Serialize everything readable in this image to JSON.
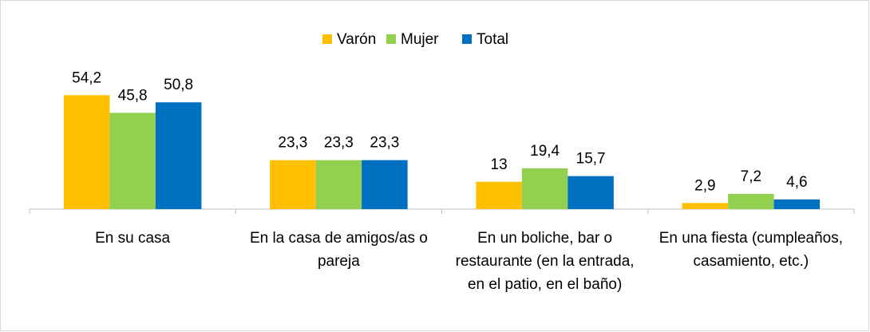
{
  "chart_data": {
    "type": "bar",
    "categories": [
      "En su casa",
      "En la casa de amigos/as o pareja",
      "En un boliche, bar o restaurante (en la entrada, en el patio, en el baño)",
      "En una fiesta (cumpleaños, casamiento, etc.)"
    ],
    "series": [
      {
        "name": "Varón",
        "color": "#ffc000",
        "values": [
          54.2,
          23.3,
          13,
          2.9
        ],
        "value_labels": [
          "54,2",
          "23,3",
          "13",
          "2,9"
        ]
      },
      {
        "name": "Mujer",
        "color": "#92d050",
        "values": [
          45.8,
          23.3,
          19.4,
          7.2
        ],
        "value_labels": [
          "45,8",
          "23,3",
          "19,4",
          "7,2"
        ]
      },
      {
        "name": "Total",
        "color": "#0070c0",
        "values": [
          50.8,
          23.3,
          15.7,
          4.6
        ],
        "value_labels": [
          "50,8",
          "23,3",
          "15,7",
          "4,6"
        ]
      }
    ],
    "ylim": [
      0,
      60
    ],
    "legend": "top"
  }
}
